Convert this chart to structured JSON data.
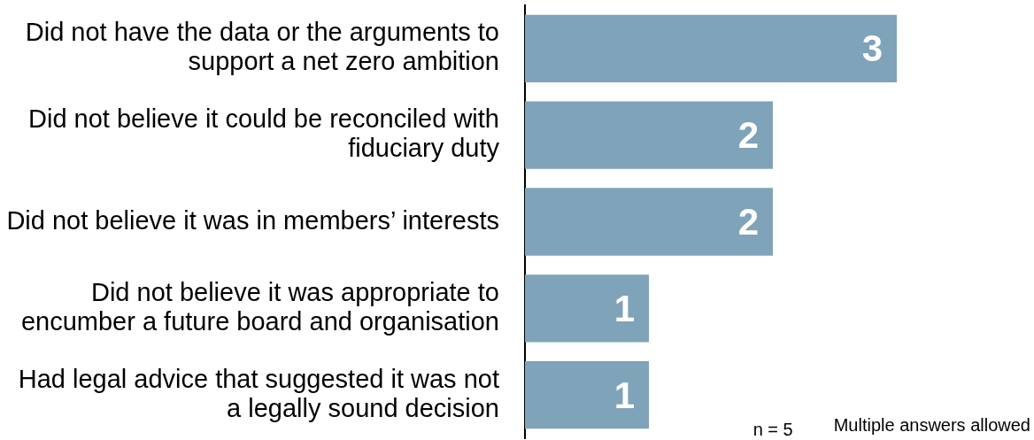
{
  "chart_data": {
    "type": "bar",
    "orientation": "horizontal",
    "categories": [
      "Did not have the data or the arguments to support a net zero ambition",
      "Did not believe it could be reconciled with fiduciary duty",
      "Did not believe it was in members’ interests",
      "Did not believe it was appropriate to encumber a future board and organisation",
      "Had legal advice that suggested it was not a legally sound decision"
    ],
    "values": [
      3,
      2,
      2,
      1,
      1
    ],
    "color": "#7fa3b8",
    "data_labels": true,
    "annotations": [
      "n = 5",
      "Multiple answers allowed"
    ]
  }
}
